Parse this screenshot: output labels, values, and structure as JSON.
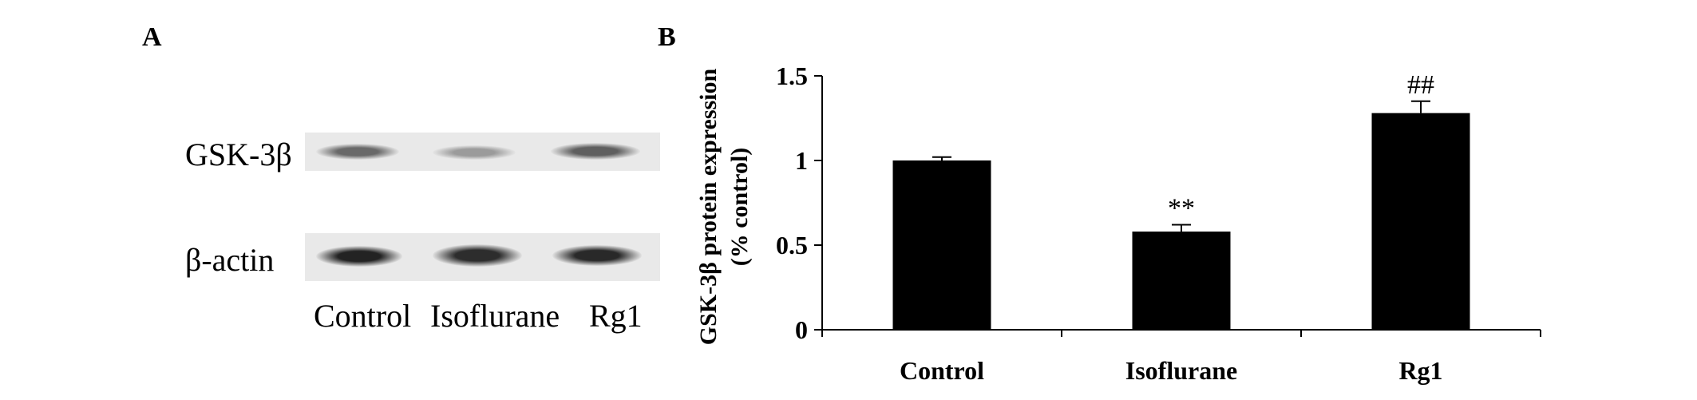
{
  "panels": {
    "a_label": "A",
    "b_label": "B"
  },
  "blot": {
    "rows": [
      "GSK-3β",
      "β-actin"
    ],
    "lanes": [
      "Control",
      "Isoflurane",
      "Rg1"
    ],
    "gsk_band_intensity": [
      0.6,
      0.35,
      0.65
    ],
    "actin_band_intensity": [
      0.95,
      0.9,
      0.92
    ]
  },
  "chart_data": {
    "type": "bar",
    "categories": [
      "Control",
      "Isoflurane",
      "Rg1"
    ],
    "values": [
      1.0,
      0.58,
      1.28
    ],
    "errors": [
      0.02,
      0.04,
      0.07
    ],
    "annotations": [
      "",
      "**",
      "##"
    ],
    "ylabel_line1": "GSK-3β protein expression",
    "ylabel_line2": "(% control)",
    "xlabel": "",
    "ylim": [
      0,
      1.5
    ],
    "yticks": [
      0,
      0.5,
      1,
      1.5
    ],
    "ytick_labels": [
      "0",
      "0.5",
      "1",
      "1.5"
    ],
    "bar_color": "#000000"
  }
}
